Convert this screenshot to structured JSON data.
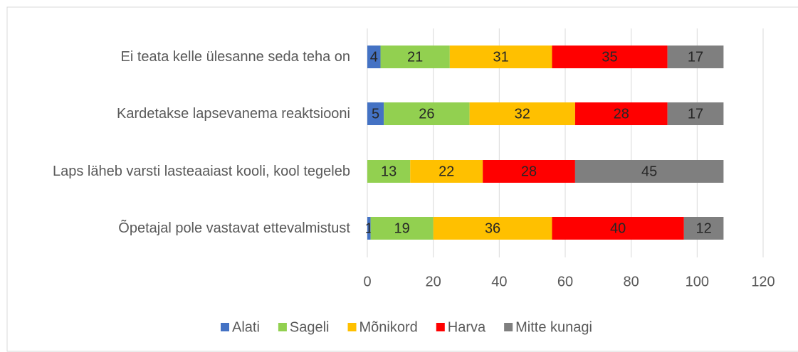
{
  "chart_data": {
    "type": "stacked-bar-horizontal",
    "categories": [
      "Ei teata kelle ülesanne seda teha on",
      "Kardetakse lapsevanema reaktsiooni",
      "Laps läheb varsti lasteaaiast kooli, kool tegeleb",
      "Õpetajal pole vastavat ettevalmistust"
    ],
    "series": [
      {
        "name": "Alati",
        "color": "#4472c4",
        "values": [
          4,
          5,
          null,
          1
        ]
      },
      {
        "name": "Sageli",
        "color": "#92d050",
        "values": [
          21,
          26,
          13,
          19
        ]
      },
      {
        "name": "Mõnikord",
        "color": "#ffc000",
        "values": [
          31,
          32,
          22,
          36
        ]
      },
      {
        "name": "Harva",
        "color": "#ff0000",
        "values": [
          35,
          28,
          28,
          40
        ]
      },
      {
        "name": "Mitte kunagi",
        "color": "#7f7f7f",
        "values": [
          17,
          17,
          45,
          12
        ]
      }
    ],
    "xlim": [
      0,
      120
    ],
    "xticks": [
      0,
      20,
      40,
      60,
      80,
      100,
      120
    ],
    "grid": true,
    "legend": "bottom"
  }
}
